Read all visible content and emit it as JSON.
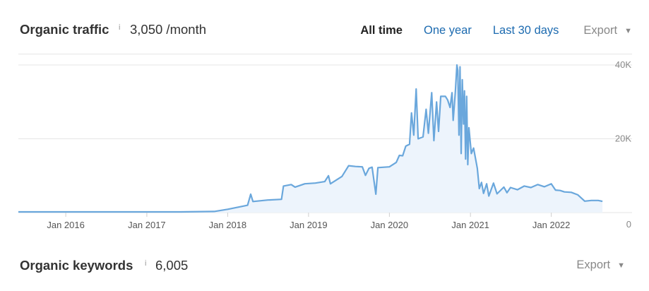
{
  "traffic": {
    "title": "Organic traffic",
    "info_icon": "i",
    "value": "3,050 /month",
    "tabs": [
      {
        "label": "All time",
        "active": true
      },
      {
        "label": "One year",
        "active": false
      },
      {
        "label": "Last 30 days",
        "active": false
      }
    ],
    "export_label": "Export",
    "export_caret": "▼"
  },
  "keywords": {
    "title": "Organic keywords",
    "info_icon": "i",
    "value": "6,005",
    "export_label": "Export",
    "export_caret": "▼"
  },
  "colors": {
    "line": "#6aa7dc",
    "area": "#edf4fc",
    "grid": "#e6e6e6",
    "tab_link": "#1d6bb0"
  },
  "chart_data": {
    "type": "area",
    "title": "",
    "xlabel": "",
    "ylabel": "",
    "ylim": [
      0,
      40000
    ],
    "y_ticks": [
      "0",
      "20K",
      "40K"
    ],
    "x_ticks": [
      "Jan 2016",
      "Jan 2017",
      "Jan 2018",
      "Jan 2019",
      "Jan 2020",
      "Jan 2021",
      "Jan 2022"
    ],
    "grid": true,
    "series": [
      {
        "points": [
          [
            "2015-06-01",
            200
          ],
          [
            "2016-06-01",
            200
          ],
          [
            "2017-06-01",
            200
          ],
          [
            "2017-11-01",
            300
          ],
          [
            "2018-01-01",
            900
          ],
          [
            "2018-03-01",
            1600
          ],
          [
            "2018-04-01",
            2000
          ],
          [
            "2018-04-15",
            5000
          ],
          [
            "2018-04-25",
            3000
          ],
          [
            "2018-07-01",
            3400
          ],
          [
            "2018-09-01",
            3600
          ],
          [
            "2018-09-10",
            7200
          ],
          [
            "2018-10-15",
            7600
          ],
          [
            "2018-11-01",
            6900
          ],
          [
            "2018-12-15",
            7800
          ],
          [
            "2019-02-01",
            8000
          ],
          [
            "2019-03-15",
            8400
          ],
          [
            "2019-04-01",
            10000
          ],
          [
            "2019-04-10",
            7800
          ],
          [
            "2019-06-01",
            9800
          ],
          [
            "2019-07-01",
            12700
          ],
          [
            "2019-08-01",
            12500
          ],
          [
            "2019-09-01",
            12400
          ],
          [
            "2019-09-15",
            10100
          ],
          [
            "2019-10-01",
            12000
          ],
          [
            "2019-10-15",
            12300
          ],
          [
            "2019-11-01",
            5000
          ],
          [
            "2019-11-10",
            12200
          ],
          [
            "2020-01-01",
            12400
          ],
          [
            "2020-02-01",
            13600
          ],
          [
            "2020-02-15",
            15500
          ],
          [
            "2020-03-01",
            15400
          ],
          [
            "2020-03-15",
            18000
          ],
          [
            "2020-04-01",
            18500
          ],
          [
            "2020-04-10",
            27000
          ],
          [
            "2020-04-20",
            21000
          ],
          [
            "2020-05-01",
            33500
          ],
          [
            "2020-05-10",
            20000
          ],
          [
            "2020-06-01",
            20500
          ],
          [
            "2020-06-15",
            28000
          ],
          [
            "2020-06-25",
            21500
          ],
          [
            "2020-07-10",
            32500
          ],
          [
            "2020-07-20",
            19500
          ],
          [
            "2020-08-01",
            30000
          ],
          [
            "2020-08-10",
            22000
          ],
          [
            "2020-08-20",
            31500
          ],
          [
            "2020-09-10",
            31500
          ],
          [
            "2020-09-20",
            30500
          ],
          [
            "2020-10-01",
            28500
          ],
          [
            "2020-10-10",
            32500
          ],
          [
            "2020-10-15",
            25000
          ],
          [
            "2020-10-25",
            32800
          ],
          [
            "2020-11-01",
            40000
          ],
          [
            "2020-11-05",
            38500
          ],
          [
            "2020-11-10",
            21000
          ],
          [
            "2020-11-15",
            39500
          ],
          [
            "2020-11-20",
            16000
          ],
          [
            "2020-11-25",
            36000
          ],
          [
            "2020-12-01",
            24000
          ],
          [
            "2020-12-05",
            33000
          ],
          [
            "2020-12-10",
            14500
          ],
          [
            "2020-12-15",
            31500
          ],
          [
            "2020-12-20",
            13000
          ],
          [
            "2020-12-25",
            23000
          ],
          [
            "2021-01-05",
            16000
          ],
          [
            "2021-01-15",
            17500
          ],
          [
            "2021-02-01",
            12000
          ],
          [
            "2021-02-10",
            6500
          ],
          [
            "2021-02-20",
            8200
          ],
          [
            "2021-03-01",
            5200
          ],
          [
            "2021-03-15",
            7800
          ],
          [
            "2021-03-25",
            4500
          ],
          [
            "2021-04-15",
            8000
          ],
          [
            "2021-05-01",
            5100
          ],
          [
            "2021-06-01",
            6900
          ],
          [
            "2021-06-15",
            5400
          ],
          [
            "2021-07-01",
            6800
          ],
          [
            "2021-08-01",
            6200
          ],
          [
            "2021-09-01",
            7200
          ],
          [
            "2021-10-01",
            6800
          ],
          [
            "2021-11-01",
            7600
          ],
          [
            "2021-12-01",
            7000
          ],
          [
            "2022-01-01",
            7800
          ],
          [
            "2022-01-20",
            6100
          ],
          [
            "2022-02-10",
            6000
          ],
          [
            "2022-03-01",
            5600
          ],
          [
            "2022-04-01",
            5500
          ],
          [
            "2022-05-01",
            4800
          ],
          [
            "2022-06-01",
            3100
          ],
          [
            "2022-07-01",
            3300
          ],
          [
            "2022-08-01",
            3300
          ],
          [
            "2022-08-20",
            3050
          ]
        ]
      }
    ]
  }
}
